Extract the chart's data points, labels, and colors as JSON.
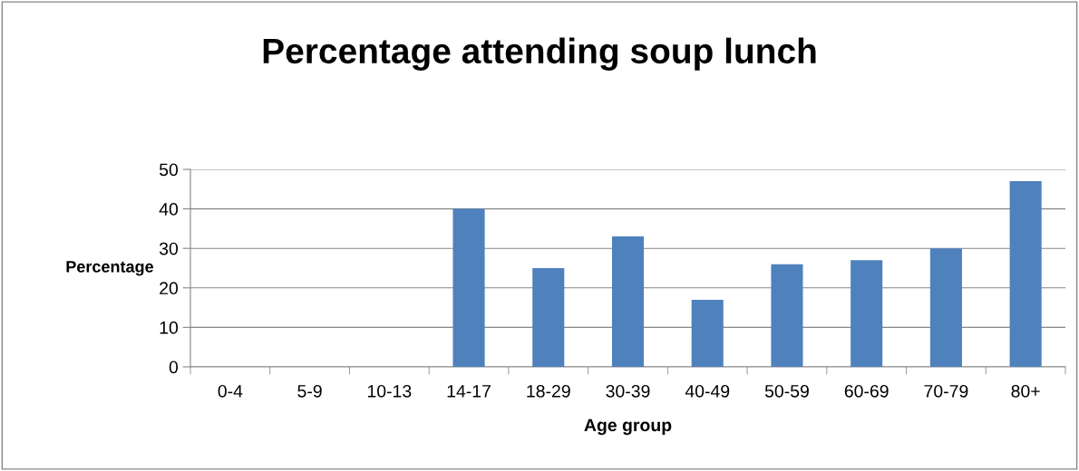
{
  "chart_data": {
    "type": "bar",
    "title": "Percentage attending soup lunch",
    "xlabel": "Age group",
    "ylabel": "Percentage",
    "categories": [
      "0-4",
      "5-9",
      "10-13",
      "14-17",
      "18-29",
      "30-39",
      "40-49",
      "50-59",
      "60-69",
      "70-79",
      "80+"
    ],
    "values": [
      0,
      0,
      0,
      40,
      25,
      33,
      17,
      26,
      27,
      30,
      47
    ],
    "color": "#4f81bd",
    "ylim": [
      0,
      50
    ],
    "yticks": [
      0,
      10,
      20,
      30,
      40,
      50
    ],
    "grid": "y",
    "legend": false
  }
}
